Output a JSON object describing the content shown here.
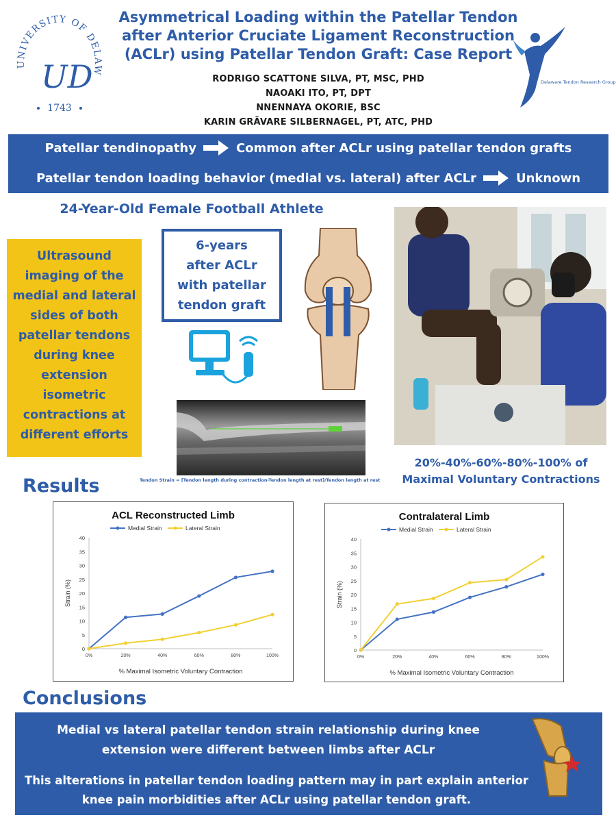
{
  "header": {
    "title_lines": [
      "Asymmetrical Loading within the Patellar Tendon",
      "after Anterior Cruciate Ligament Reconstruction",
      "(ACLr) using Patellar Tendon Graft: Case Report"
    ],
    "authors": [
      "RODRIGO SCATTONE SILVA, PT, MSC, PHD",
      "NAOAKI ITO, PT, DPT",
      "NNENNAYA OKORIE, BSC",
      "KARIN GRÄVARE SILBERNAGEL, PT, ATC, PHD"
    ],
    "left_logo": {
      "arc_text": "UNIVERSITY OF DELAWARE",
      "monogram": "UD",
      "year": "1743"
    },
    "right_logo_label": "Delaware Tendon Research Group"
  },
  "intro": {
    "line1_left": "Patellar tendinopathy",
    "line1_right": "Common after ACLr using patellar tendon grafts",
    "line2_left": "Patellar tendon loading behavior (medial vs. lateral) after ACLr",
    "line2_right": "Unknown"
  },
  "case": {
    "title": "24-Year-Old Female Football Athlete",
    "method_text": "Ultrasound imaging of the medial and lateral sides of both patellar tendons during knee extension isometric contractions at different efforts",
    "graft_lines": [
      "6-years",
      "after ACLr",
      "with patellar",
      "tendon graft"
    ],
    "strain_formula": "Tendon Strain = [Tendon length during contraction-Tendon length at rest]/Tendon length at rest",
    "efforts_lines": [
      "20%-40%-60%-80%-100% of",
      "Maximal Voluntary Contractions"
    ]
  },
  "results": {
    "heading": "Results"
  },
  "chart_data": [
    {
      "type": "line",
      "title": "ACL Reconstructed Limb",
      "xlabel": "% Maximal Isometric Voluntary Contraction",
      "ylabel": "Strain (%)",
      "categories": [
        "0%",
        "20%",
        "40%",
        "60%",
        "80%",
        "100%"
      ],
      "ylim": [
        0,
        40
      ],
      "yticks": [
        0,
        5,
        10,
        15,
        20,
        25,
        30,
        35,
        40
      ],
      "legend": "top",
      "series": [
        {
          "name": "Medial Strain",
          "color": "#4472c4",
          "values": [
            0,
            11.3,
            12.5,
            19,
            25.7,
            27.9
          ]
        },
        {
          "name": "Lateral Strain",
          "color": "#f2d035",
          "values": [
            0,
            2,
            3.4,
            5.8,
            8.6,
            12.3
          ]
        }
      ]
    },
    {
      "type": "line",
      "title": "Contralateral Limb",
      "xlabel": "% Maximal Isometric Voluntary Contraction",
      "ylabel": "Strain (%)",
      "categories": [
        "0%",
        "20%",
        "40%",
        "60%",
        "80%",
        "100%"
      ],
      "ylim": [
        0,
        40
      ],
      "yticks": [
        0,
        5,
        10,
        15,
        20,
        25,
        30,
        35,
        40
      ],
      "legend": "top",
      "series": [
        {
          "name": "Medial Strain",
          "color": "#4472c4",
          "values": [
            0,
            11.1,
            13.7,
            19,
            22.8,
            27.3
          ]
        },
        {
          "name": "Lateral Strain",
          "color": "#f2d035",
          "values": [
            0,
            16.6,
            18.6,
            24.3,
            25.4,
            33.6
          ]
        }
      ]
    }
  ],
  "conclusions": {
    "heading": "Conclusions",
    "statement1": "Medial vs lateral patellar tendon strain relationship during knee extension were different between limbs after ACLr",
    "statement2": "This alterations in patellar tendon loading pattern may in part explain anterior knee pain morbidities after ACLr using patellar tendon graft."
  },
  "colors": {
    "brand_blue": "#2e5ca8",
    "highlight_yellow": "#f2c417",
    "medial_series": "#4472c4",
    "lateral_series": "#f2d035"
  },
  "icons": [
    "university-of-delaware-seal-icon",
    "tendon-research-runner-icon",
    "right-arrow-icon",
    "knee-with-graft-icon",
    "ultrasound-machine-icon",
    "knee-joint-pain-icon"
  ]
}
